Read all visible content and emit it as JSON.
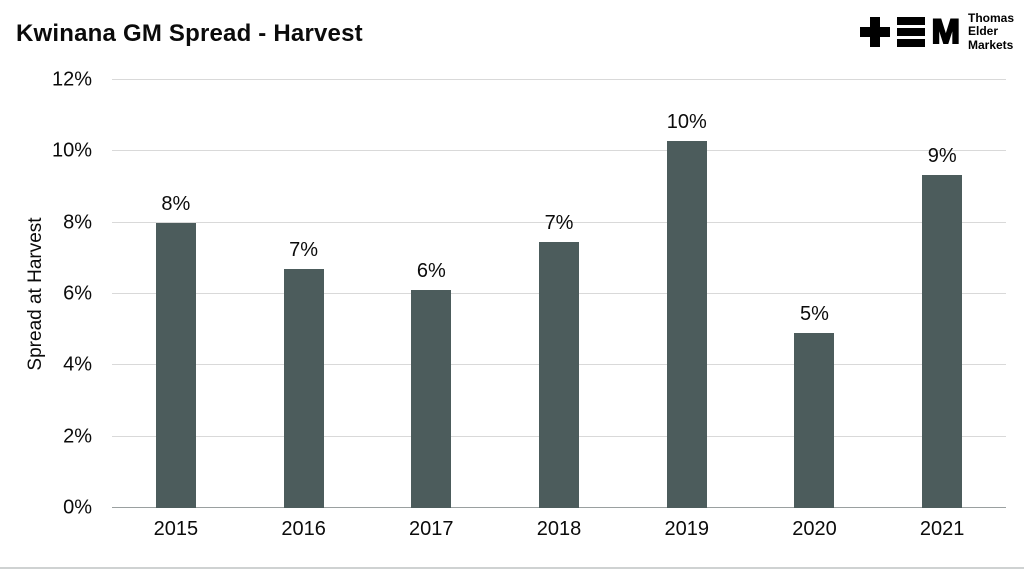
{
  "header": {
    "title": "Kwinana GM Spread - Harvest",
    "logo": {
      "line1": "Thomas",
      "line2": "Elder",
      "line3": "Markets",
      "m_glyph": "M"
    }
  },
  "chart_data": {
    "type": "bar",
    "title": "Kwinana GM Spread - Harvest",
    "categories": [
      "2015",
      "2016",
      "2017",
      "2018",
      "2019",
      "2020",
      "2021"
    ],
    "values": [
      8.0,
      6.7,
      6.1,
      7.45,
      10.3,
      4.9,
      9.35
    ],
    "labels": [
      "8%",
      "7%",
      "6%",
      "7%",
      "10%",
      "5%",
      "9%"
    ],
    "xlabel": "",
    "ylabel": "Spread at Harvest",
    "ylim": [
      0,
      12
    ],
    "yticks": [
      0,
      2,
      4,
      6,
      8,
      10,
      12
    ],
    "ytick_labels": [
      "0%",
      "2%",
      "4%",
      "6%",
      "8%",
      "10%",
      "12%"
    ],
    "grid": true,
    "legend": "none",
    "bar_color": "#4c5c5c",
    "gridline_color": "#d9d9d9"
  }
}
